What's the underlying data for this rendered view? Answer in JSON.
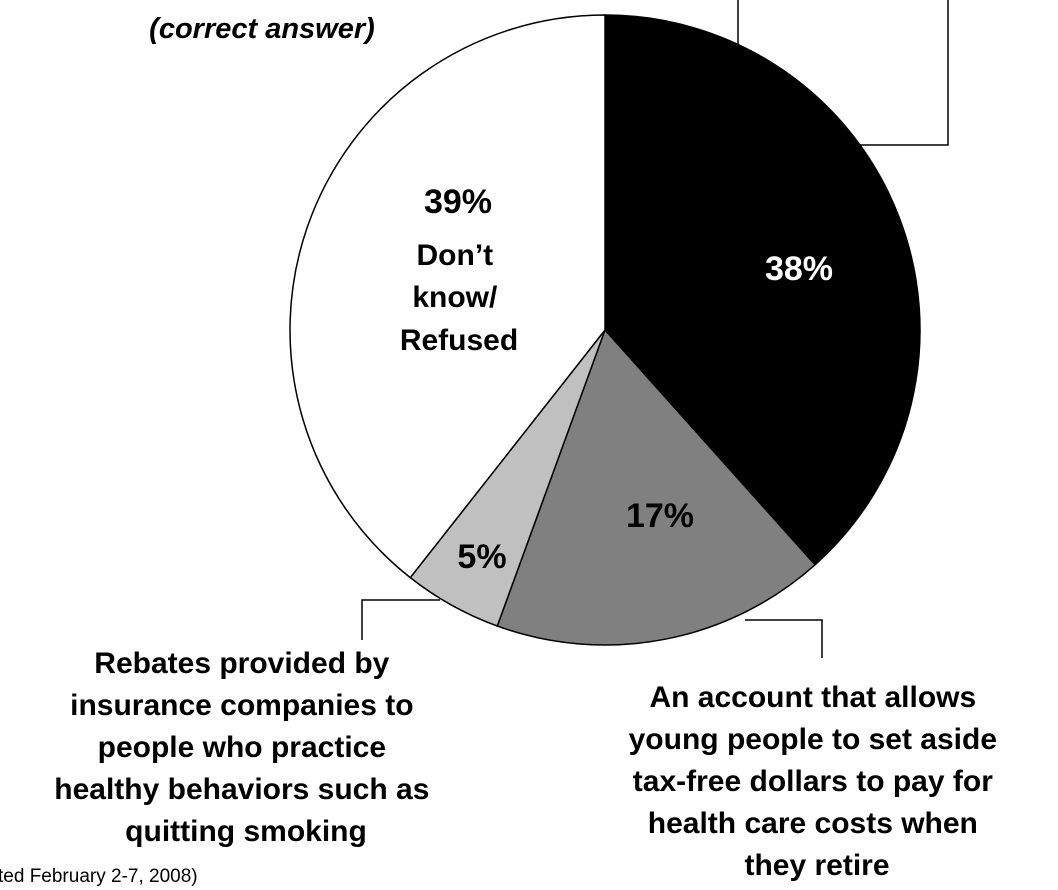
{
  "chart_data": {
    "type": "pie",
    "top_left_label": "(correct answer)",
    "slices": [
      {
        "value": 38,
        "value_label": "38%",
        "color": "#000000",
        "label_color": "#ffffff",
        "category": ""
      },
      {
        "value": 17,
        "value_label": "17%",
        "color": "#808080",
        "label_color": "#000000",
        "category": "An account that allows young people to set aside tax-free dollars to pay for health care costs when they retire",
        "category_lines": [
          "An account that allows",
          "young people to set aside",
          "tax-free dollars to pay for",
          "health care costs when",
          "they retire"
        ]
      },
      {
        "value": 5,
        "value_label": "5%",
        "color": "#c0c0c0",
        "label_color": "#000000",
        "category": "Rebates provided by insurance companies to people who practice healthy behaviors such as quitting smoking",
        "category_lines": [
          "Rebates provided by",
          "insurance companies to",
          "people who practice",
          "healthy behaviors such as",
          "quitting smoking"
        ]
      },
      {
        "value": 39,
        "value_label": "39%",
        "color": "#ffffff",
        "label_color": "#000000",
        "category": "Don’t know/ Refused",
        "category_lines": [
          "Don’t",
          "know/",
          "Refused"
        ]
      }
    ],
    "start_angle_deg": 0,
    "direction": "clockwise",
    "footnote": "ted February 2-7, 2008)"
  }
}
